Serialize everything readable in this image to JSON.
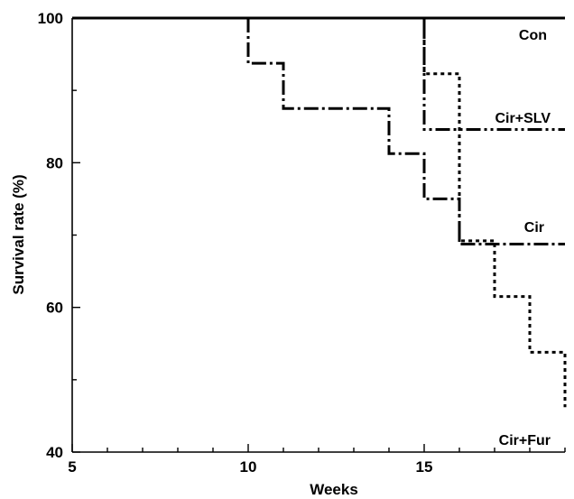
{
  "chart_data": {
    "type": "line",
    "title": "",
    "xlabel": "Weeks",
    "ylabel": "Survival rate (%)",
    "xlim": [
      5,
      19
    ],
    "ylim": [
      40,
      100
    ],
    "x_ticks": [
      5,
      10,
      15
    ],
    "y_ticks": [
      40,
      60,
      80,
      100
    ],
    "grid": false,
    "step": true,
    "series": [
      {
        "name": "Con",
        "style": "solid",
        "points": [
          [
            5,
            100
          ],
          [
            19,
            100
          ]
        ]
      },
      {
        "name": "Cir+SLV",
        "style": "dash-dot-dot",
        "points": [
          [
            15,
            100
          ],
          [
            15,
            84.6
          ],
          [
            19,
            84.6
          ]
        ]
      },
      {
        "name": "Cir",
        "style": "dash-dot",
        "points": [
          [
            10,
            100
          ],
          [
            10,
            93.75
          ],
          [
            11,
            93.75
          ],
          [
            11,
            87.5
          ],
          [
            14,
            87.5
          ],
          [
            14,
            81.25
          ],
          [
            15,
            81.25
          ],
          [
            15,
            75
          ],
          [
            16,
            75
          ],
          [
            16,
            68.75
          ],
          [
            19,
            68.75
          ]
        ]
      },
      {
        "name": "Cir+Fur",
        "style": "dotted",
        "points": [
          [
            15,
            100
          ],
          [
            15,
            92.3
          ],
          [
            16,
            92.3
          ],
          [
            16,
            69.2
          ],
          [
            17,
            69.2
          ],
          [
            17,
            61.5
          ],
          [
            18,
            61.5
          ],
          [
            18,
            53.8
          ],
          [
            19,
            53.8
          ],
          [
            19,
            46.2
          ]
        ]
      }
    ]
  }
}
